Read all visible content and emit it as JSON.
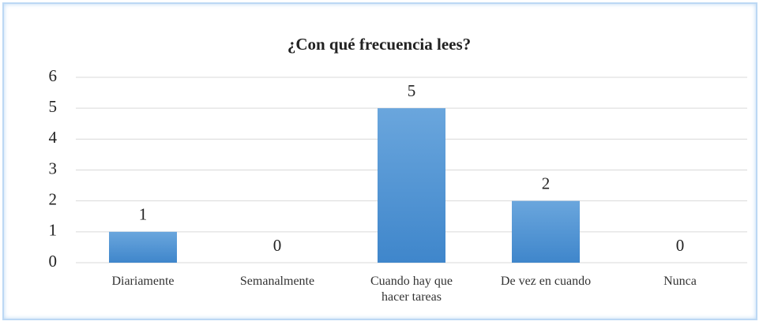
{
  "chart_data": {
    "type": "bar",
    "title": "¿Con qué frecuencia lees?",
    "categories": [
      "Diariamente",
      "Semanalmente",
      "Cuando hay que hacer tareas",
      "De vez en cuando",
      "Nunca"
    ],
    "values": [
      1,
      0,
      5,
      2,
      0
    ],
    "color": "#5b9bd5",
    "ylim": [
      0,
      6
    ],
    "yticks": [
      0,
      1,
      2,
      3,
      4,
      5,
      6
    ],
    "grid": true
  }
}
